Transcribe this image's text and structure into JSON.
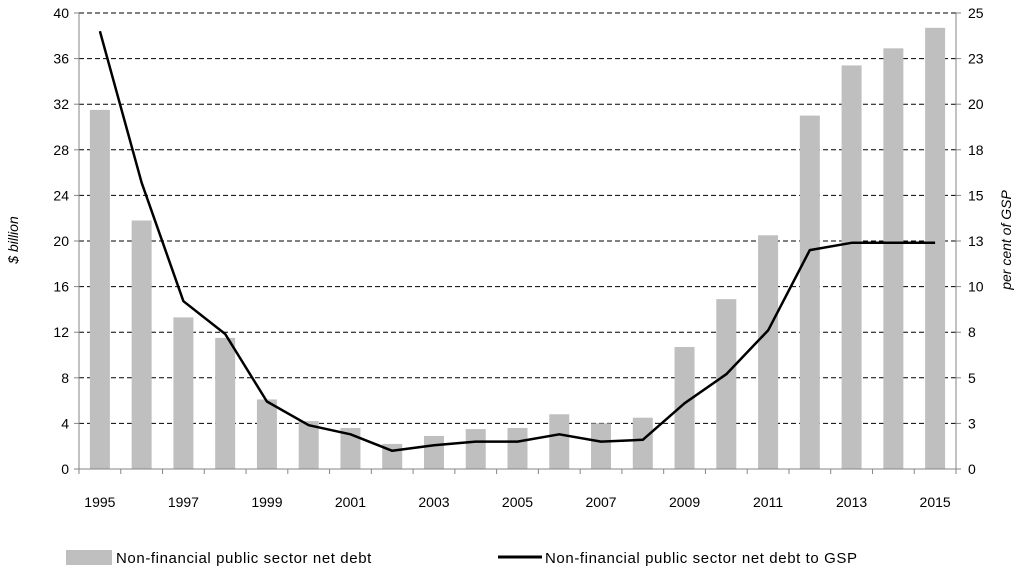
{
  "chart_data": {
    "type": "bar",
    "x": [
      1995,
      1996,
      1997,
      1998,
      1999,
      2000,
      2001,
      2002,
      2003,
      2004,
      2005,
      2006,
      2007,
      2008,
      2009,
      2010,
      2011,
      2012,
      2013,
      2014,
      2015
    ],
    "x_tick_labels": [
      "1995",
      "1997",
      "1999",
      "2001",
      "2003",
      "2005",
      "2007",
      "2009",
      "2011",
      "2013",
      "2015"
    ],
    "series": [
      {
        "name": "Non-financial public sector net debt",
        "type": "bar",
        "axis": "left",
        "values": [
          31.5,
          21.8,
          13.3,
          11.5,
          6.1,
          4.2,
          3.6,
          2.2,
          2.9,
          3.5,
          3.6,
          4.8,
          4.0,
          4.5,
          10.7,
          14.9,
          20.5,
          31.0,
          35.4,
          36.9,
          38.7
        ]
      },
      {
        "name": "Non-financial public sector net debt  to GSP",
        "type": "line",
        "axis": "right",
        "values": [
          24.0,
          15.7,
          9.2,
          7.4,
          3.7,
          2.4,
          1.9,
          1.0,
          1.3,
          1.5,
          1.5,
          1.9,
          1.5,
          1.6,
          3.6,
          5.2,
          7.6,
          12.0,
          12.4,
          12.4,
          12.4
        ]
      }
    ],
    "y_left": {
      "label": "$ billion",
      "range": [
        0,
        40
      ],
      "ticks": [
        "0",
        "4",
        "8",
        "12",
        "16",
        "20",
        "24",
        "28",
        "32",
        "36",
        "40"
      ]
    },
    "y_right": {
      "label": "per cent of GSP",
      "range": [
        0,
        25
      ],
      "ticks": [
        "0",
        "3",
        "5",
        "8",
        "10",
        "13",
        "15",
        "18",
        "20",
        "23",
        "25"
      ]
    },
    "grid": true,
    "legend_position": "bottom",
    "colors": {
      "bar": "#bfbfbf",
      "line": "#000000",
      "grid": "#000000",
      "axis": "#868686"
    }
  }
}
